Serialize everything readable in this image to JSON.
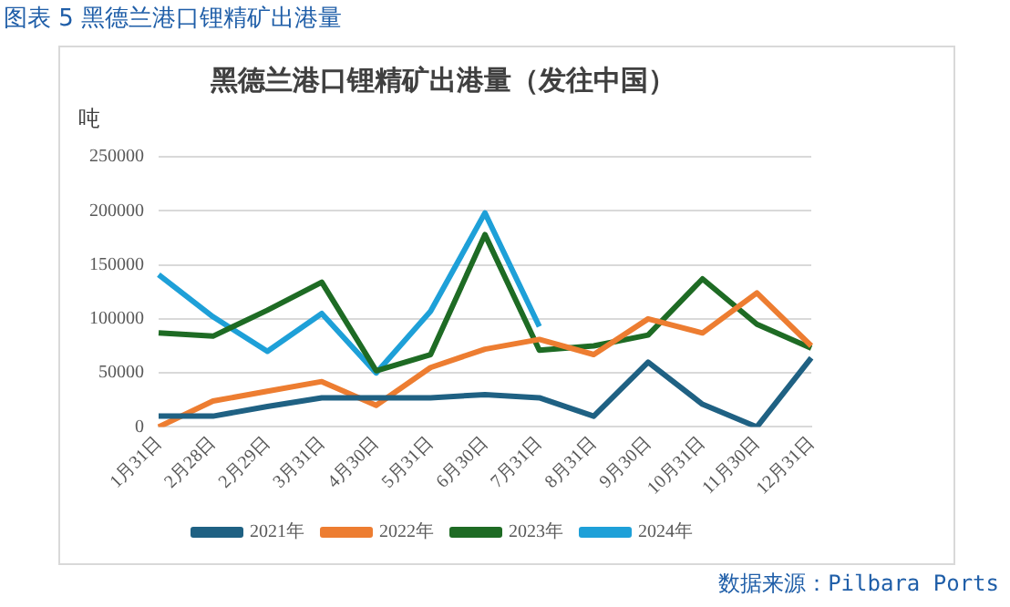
{
  "chart_data": {
    "type": "line",
    "title": "图表 5 黑德兰港口锂精矿出港量",
    "subtitle": "黑德兰港口锂精矿出港量（发往中国）",
    "ylabel": "吨",
    "categories": [
      "1月31日",
      "2月28日",
      "2月29日",
      "3月31日",
      "4月30日",
      "5月31日",
      "6月30日",
      "7月31日",
      "8月31日",
      "9月30日",
      "10月31日",
      "11月30日",
      "12月31日"
    ],
    "series": [
      {
        "name": "2021年",
        "color": "#1f6183",
        "values": [
          10000,
          10000,
          19000,
          27000,
          27000,
          27000,
          30000,
          27000,
          10000,
          60000,
          21000,
          0,
          64000
        ]
      },
      {
        "name": "2022年",
        "color": "#ed7d31",
        "values": [
          0,
          24000,
          33000,
          42000,
          20000,
          55000,
          72000,
          81000,
          67000,
          100000,
          87000,
          124000,
          75000
        ]
      },
      {
        "name": "2023年",
        "color": "#1e6b24",
        "values": [
          87000,
          84000,
          108000,
          134000,
          52000,
          67000,
          178000,
          71000,
          75000,
          85000,
          137000,
          95000,
          73000
        ]
      },
      {
        "name": "2024年",
        "color": "#1ea0d8",
        "values": [
          141000,
          102000,
          70000,
          105000,
          50000,
          107000,
          198000,
          93000,
          null,
          null,
          null,
          null,
          null
        ]
      }
    ],
    "ylim": [
      0,
      250000
    ],
    "yticks": [
      0,
      50000,
      100000,
      150000,
      200000,
      250000
    ],
    "grid": "y",
    "legend": "bottom",
    "marker": "none",
    "line_style": "solid",
    "annotations": [
      "数据来源：Pilbara Ports"
    ]
  }
}
